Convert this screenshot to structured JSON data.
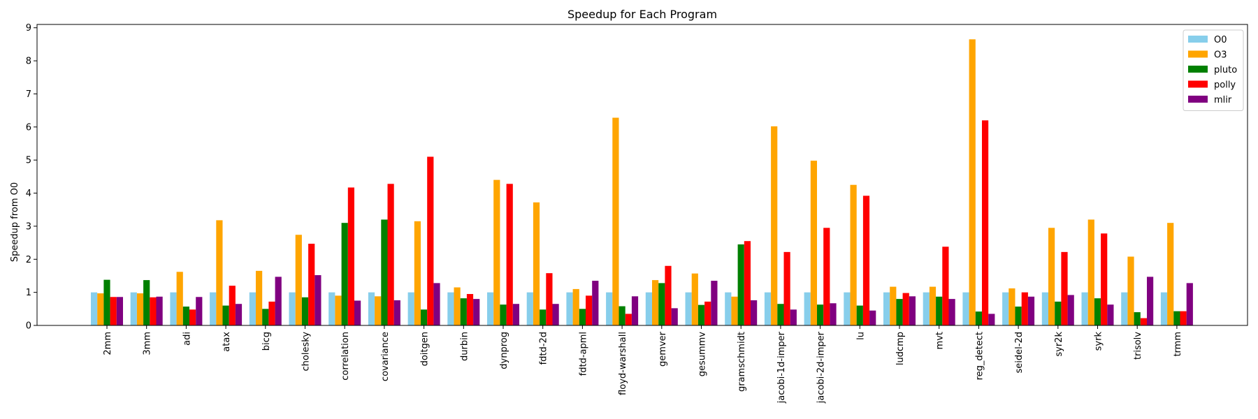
{
  "chart_data": {
    "type": "bar",
    "title": "Speedup for Each Program",
    "xlabel": "",
    "ylabel": "Speedup from O0",
    "ylim": [
      0,
      9.1
    ],
    "yticks": [
      0,
      1,
      2,
      3,
      4,
      5,
      6,
      7,
      8,
      9
    ],
    "grid": false,
    "legend_position": "top-right",
    "categories": [
      "2mm",
      "3mm",
      "adi",
      "atax",
      "bicg",
      "cholesky",
      "correlation",
      "covariance",
      "doitgen",
      "durbin",
      "dynprog",
      "fdtd-2d",
      "fdtd-apml",
      "floyd-warshall",
      "gemver",
      "gesummv",
      "gramschmidt",
      "jacobi-1d-imper",
      "jacobi-2d-imper",
      "lu",
      "ludcmp",
      "mvt",
      "reg_detect",
      "seidel-2d",
      "syr2k",
      "syrk",
      "trisolv",
      "trmm"
    ],
    "series": [
      {
        "name": "O0",
        "color": "#87ceeb",
        "values": [
          1,
          1,
          1,
          1,
          1,
          1,
          1,
          1,
          1,
          1,
          1,
          1,
          1,
          1,
          1,
          1,
          1,
          1,
          1,
          1,
          1,
          1,
          1,
          1,
          1,
          1,
          1,
          1
        ]
      },
      {
        "name": "O3",
        "color": "#ffa500",
        "values": [
          0.97,
          0.97,
          1.62,
          3.18,
          1.65,
          2.74,
          0.9,
          0.88,
          3.15,
          1.15,
          4.4,
          3.72,
          1.1,
          6.28,
          1.37,
          1.57,
          0.87,
          6.02,
          4.98,
          4.25,
          1.17,
          1.17,
          8.65,
          1.12,
          2.95,
          3.2,
          2.08,
          3.1
        ]
      },
      {
        "name": "pluto",
        "color": "#008000",
        "values": [
          1.38,
          1.37,
          0.57,
          0.6,
          0.5,
          0.85,
          3.1,
          3.2,
          0.48,
          0.82,
          0.63,
          0.48,
          0.5,
          0.58,
          1.28,
          0.62,
          2.45,
          0.65,
          0.63,
          0.6,
          0.8,
          0.87,
          0.42,
          0.57,
          0.72,
          0.82,
          0.4,
          0.43
        ]
      },
      {
        "name": "polly",
        "color": "#ff0000",
        "values": [
          0.86,
          0.85,
          0.48,
          1.2,
          0.72,
          2.47,
          4.17,
          4.28,
          5.1,
          0.95,
          4.28,
          1.58,
          0.9,
          0.35,
          1.8,
          0.72,
          2.55,
          2.22,
          2.95,
          3.92,
          0.98,
          2.38,
          6.2,
          1.0,
          2.22,
          2.78,
          0.22,
          0.43
        ]
      },
      {
        "name": "mlir",
        "color": "#800080",
        "values": [
          0.86,
          0.87,
          0.86,
          0.65,
          1.47,
          1.52,
          0.75,
          0.76,
          1.28,
          0.8,
          0.65,
          0.65,
          1.35,
          0.88,
          0.52,
          1.35,
          0.76,
          0.48,
          0.67,
          0.45,
          0.88,
          0.8,
          0.35,
          0.87,
          0.92,
          0.63,
          1.47,
          1.28
        ]
      }
    ]
  }
}
